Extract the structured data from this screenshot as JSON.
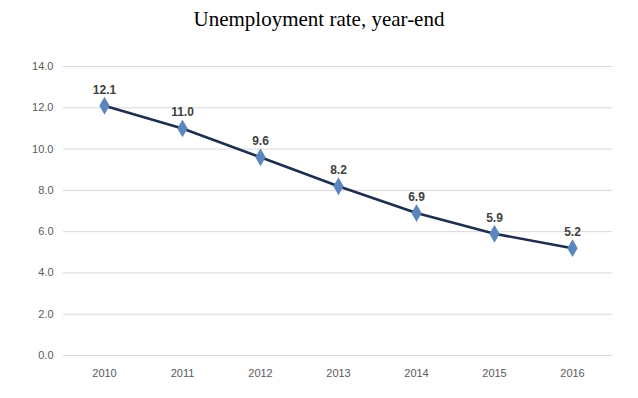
{
  "chart_data": {
    "type": "line",
    "title": "Unemployment rate, year-end",
    "categories": [
      "2010",
      "2011",
      "2012",
      "2013",
      "2014",
      "2015",
      "2016"
    ],
    "values": [
      12.1,
      11.0,
      9.6,
      8.2,
      6.9,
      5.9,
      5.2
    ],
    "value_labels": [
      "12.1",
      "11.0",
      "9.6",
      "8.2",
      "6.9",
      "5.9",
      "5.2"
    ],
    "color": "#1f2d4f",
    "marker": "diamond",
    "ylim": [
      0,
      14
    ],
    "yticks": [
      {
        "value": 0,
        "label": "0.0"
      },
      {
        "value": 2,
        "label": "2.0"
      },
      {
        "value": 4,
        "label": "4.0"
      },
      {
        "value": 6,
        "label": "6.0"
      },
      {
        "value": 8,
        "label": "8.0"
      },
      {
        "value": 10,
        "label": "10.0"
      },
      {
        "value": 12,
        "label": "12.0"
      },
      {
        "value": 14,
        "label": "14.0"
      }
    ],
    "grid": true,
    "data_labels": true
  }
}
